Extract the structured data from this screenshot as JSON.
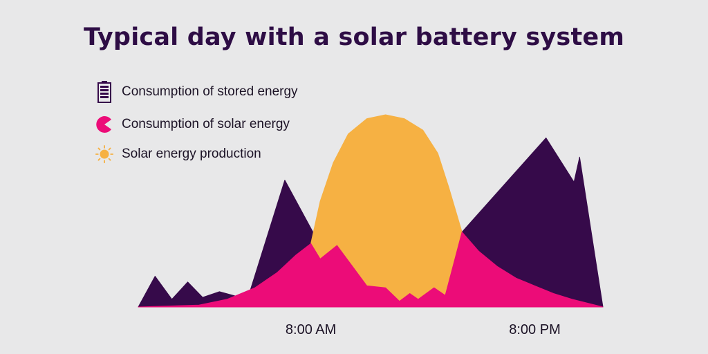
{
  "title": "Typical day with a solar battery system",
  "legend": [
    {
      "label": "Consumption of stored energy",
      "icon": "battery-icon",
      "color": "#360a4a"
    },
    {
      "label": "Consumption of solar energy",
      "icon": "pacman-icon",
      "color": "#ec0c78"
    },
    {
      "label": "Solar energy production",
      "icon": "sun-icon",
      "color": "#f6b143"
    }
  ],
  "colors": {
    "background": "#e8e8e9",
    "stored": "#360a4a",
    "solar_consumption": "#ec0c78",
    "solar_production": "#f6b143",
    "title": "#2e0d45"
  },
  "chart_data": {
    "type": "area",
    "title": "Typical day with a solar battery system",
    "xlabel": "",
    "ylabel": "",
    "x_ticks": [
      {
        "hour": 8,
        "label": "8:00 AM"
      },
      {
        "hour": 20,
        "label": "8:00 PM"
      }
    ],
    "xlim": [
      -1.25,
      23.65
    ],
    "ylim": [
      0,
      100
    ],
    "grid": false,
    "legend_position": "top-left",
    "series": [
      {
        "name": "Consumption of stored energy",
        "color": "#360a4a",
        "points": [
          [
            -1.25,
            0
          ],
          [
            -0.35,
            16
          ],
          [
            0.55,
            4
          ],
          [
            1.4,
            13
          ],
          [
            2.2,
            5
          ],
          [
            3.1,
            8
          ],
          [
            4.6,
            4
          ],
          [
            6.6,
            66
          ],
          [
            8.5,
            32
          ],
          [
            10,
            9
          ],
          [
            12,
            4
          ],
          [
            13.5,
            8
          ],
          [
            14.4,
            6
          ],
          [
            16.1,
            39
          ],
          [
            20.6,
            88
          ],
          [
            22.1,
            65
          ],
          [
            22.4,
            78
          ],
          [
            23.65,
            0
          ]
        ]
      },
      {
        "name": "Consumption of solar energy",
        "color": "#ec0c78",
        "points": [
          [
            -1.25,
            0
          ],
          [
            2,
            1
          ],
          [
            3.5,
            4
          ],
          [
            5,
            10
          ],
          [
            6.2,
            18
          ],
          [
            7.2,
            27
          ],
          [
            8,
            33
          ],
          [
            8.5,
            25
          ],
          [
            9.4,
            32
          ],
          [
            11,
            11
          ],
          [
            12,
            10
          ],
          [
            12.75,
            3
          ],
          [
            13.3,
            7
          ],
          [
            13.75,
            4
          ],
          [
            14.6,
            10
          ],
          [
            15.2,
            6
          ],
          [
            16.1,
            39
          ],
          [
            17,
            29
          ],
          [
            18,
            21
          ],
          [
            19,
            15
          ],
          [
            20,
            11
          ],
          [
            21,
            7
          ],
          [
            22,
            4
          ],
          [
            23.65,
            0
          ]
        ]
      },
      {
        "name": "Solar energy production",
        "color": "#f6b143",
        "points": [
          [
            7.5,
            0
          ],
          [
            8,
            33
          ],
          [
            8.5,
            55
          ],
          [
            9.2,
            75
          ],
          [
            10,
            90
          ],
          [
            11,
            98
          ],
          [
            12,
            100
          ],
          [
            13,
            98
          ],
          [
            14,
            92
          ],
          [
            14.8,
            80
          ],
          [
            15.4,
            62
          ],
          [
            16.1,
            39
          ],
          [
            16.3,
            0
          ]
        ]
      }
    ]
  }
}
